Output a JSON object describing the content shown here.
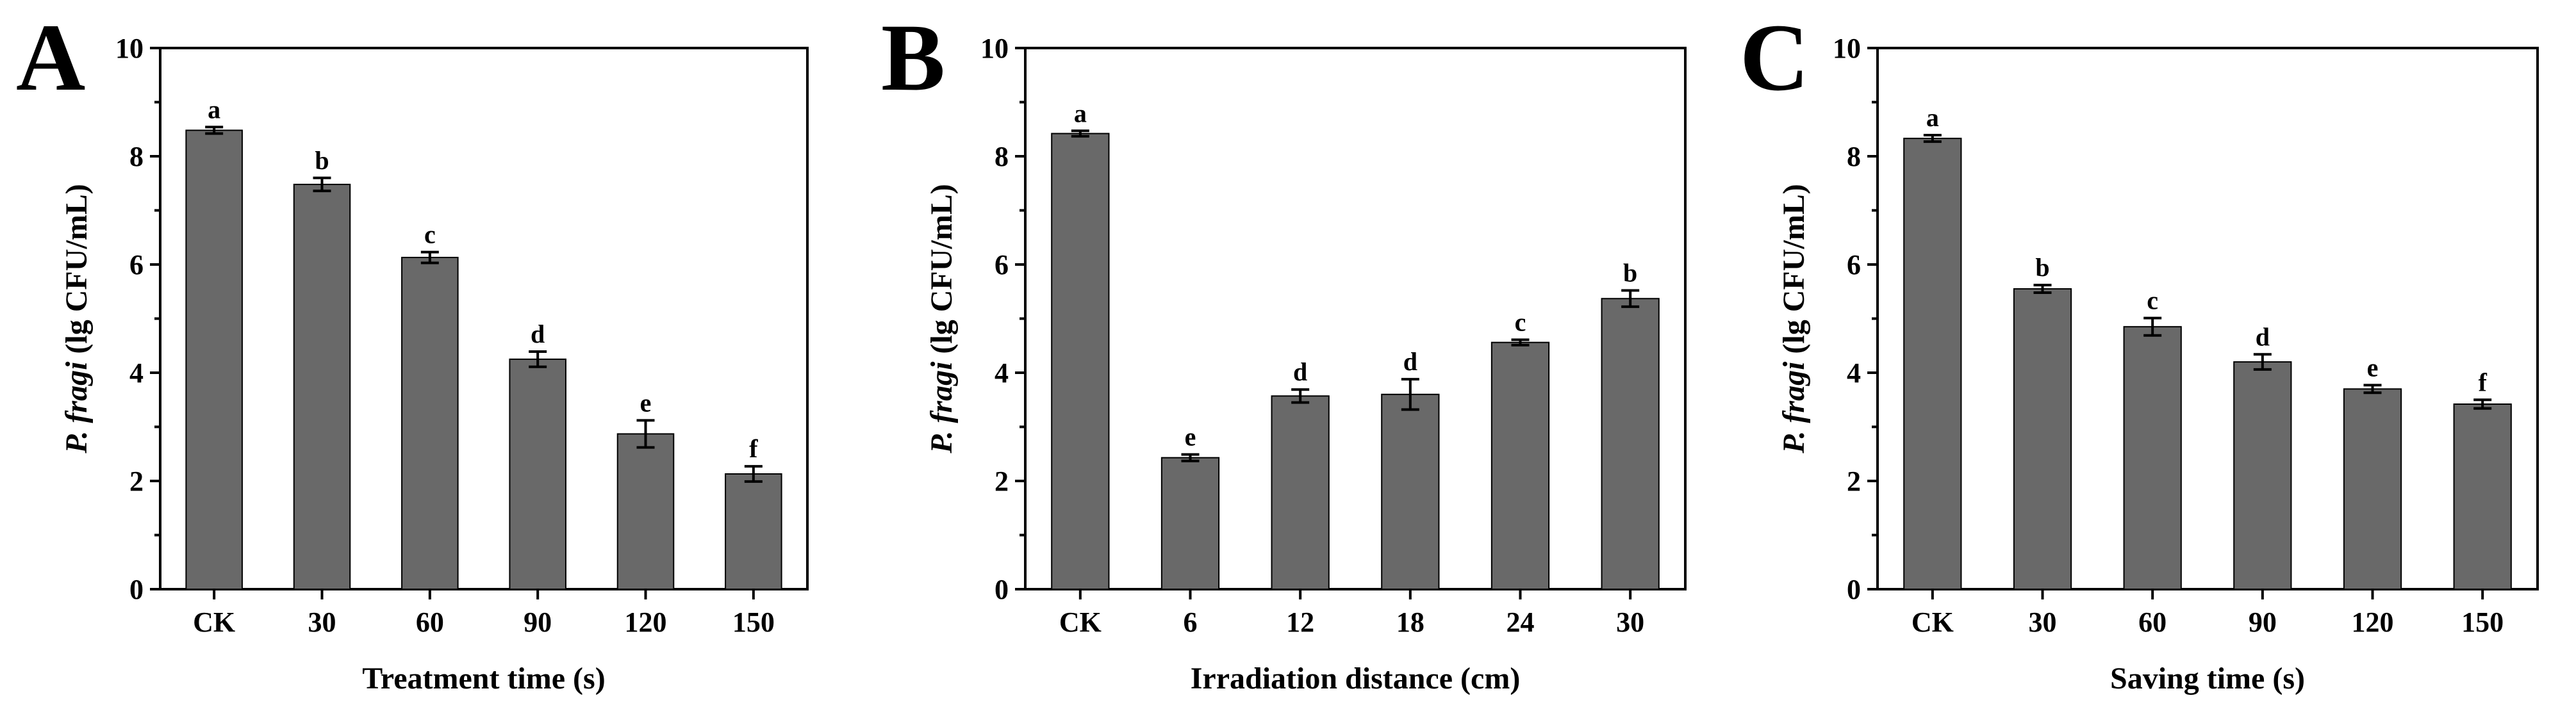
{
  "chart_data": [
    {
      "type": "bar",
      "panel": "A",
      "xlabel": "Treatment time (s)",
      "ylabel_italic": "P. fragi",
      "ylabel_rest": " (lg CFU/mL)",
      "ylim": [
        0,
        10
      ],
      "yticks": [
        0,
        2,
        4,
        6,
        8,
        10
      ],
      "categories": [
        "CK",
        "30",
        "60",
        "90",
        "120",
        "150"
      ],
      "values": [
        8.48,
        7.48,
        6.13,
        4.25,
        2.87,
        2.13
      ],
      "errors": [
        0.06,
        0.12,
        0.1,
        0.14,
        0.25,
        0.14
      ],
      "labels": [
        "a",
        "b",
        "c",
        "d",
        "e",
        "f"
      ],
      "grid": false
    },
    {
      "type": "bar",
      "panel": "B",
      "xlabel": "Irradiation distance (cm)",
      "ylabel_italic": "P. fragi",
      "ylabel_rest": " (lg CFU/mL)",
      "ylim": [
        0,
        10
      ],
      "yticks": [
        0,
        2,
        4,
        6,
        8,
        10
      ],
      "categories": [
        "CK",
        "6",
        "12",
        "18",
        "24",
        "30"
      ],
      "values": [
        8.42,
        2.43,
        3.57,
        3.6,
        4.56,
        5.37
      ],
      "errors": [
        0.05,
        0.06,
        0.12,
        0.28,
        0.05,
        0.15
      ],
      "labels": [
        "a",
        "e",
        "d",
        "d",
        "c",
        "b"
      ],
      "grid": false
    },
    {
      "type": "bar",
      "panel": "C",
      "xlabel": "Saving time (s)",
      "ylabel_italic": "P. fragi",
      "ylabel_rest": " (lg CFU/mL)",
      "ylim": [
        0,
        10
      ],
      "yticks": [
        0,
        2,
        4,
        6,
        8,
        10
      ],
      "categories": [
        "CK",
        "30",
        "60",
        "90",
        "120",
        "150"
      ],
      "values": [
        8.33,
        5.55,
        4.85,
        4.2,
        3.7,
        3.42
      ],
      "errors": [
        0.06,
        0.07,
        0.16,
        0.14,
        0.07,
        0.08
      ],
      "labels": [
        "a",
        "b",
        "c",
        "d",
        "e",
        "f"
      ],
      "grid": false
    }
  ],
  "colors": {
    "bar_fill": "#696969",
    "axis": "#000000"
  }
}
